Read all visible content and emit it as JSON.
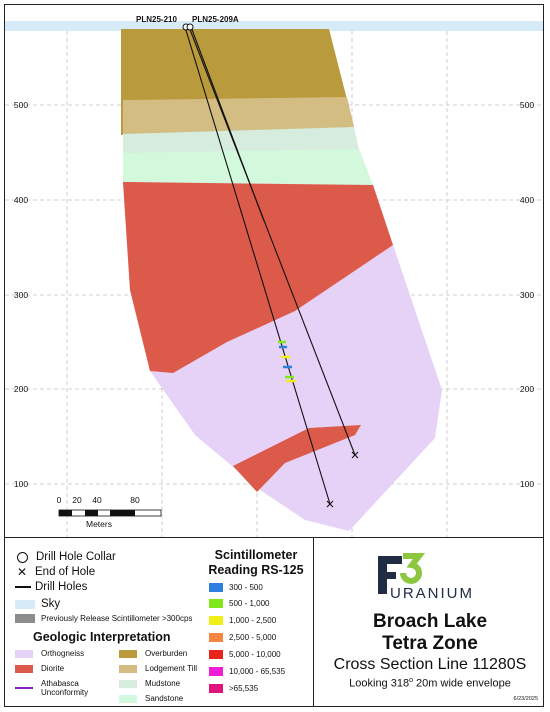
{
  "holes": [
    {
      "name": "PLN25-210"
    },
    {
      "name": "PLN25-209A"
    }
  ],
  "elevation_ticks": [
    "500",
    "400",
    "300",
    "200",
    "100"
  ],
  "scale_bar": {
    "ticks": [
      "0",
      "20",
      "40",
      "80"
    ],
    "unit": "Meters"
  },
  "legend": {
    "symbols": [
      {
        "label": "Drill Hole Collar",
        "icon": "circle-icon"
      },
      {
        "label": "End of Hole",
        "icon": "x-icon"
      },
      {
        "label": "Drill Holes",
        "icon": "line-icon"
      }
    ],
    "sky": {
      "label": "Sky",
      "color": "#d7eaf7"
    },
    "previous_release": {
      "label": "Previously Release Scintillometer >300cps",
      "color": "#8c8c8c"
    },
    "geology_title": "Geologic Interpretation",
    "geology_units": [
      {
        "label": "Orthogneiss",
        "color": "#e6d1f7"
      },
      {
        "label": "Overburden",
        "color": "#b99a3c"
      },
      {
        "label": "Diorite",
        "color": "#dc5a4a"
      },
      {
        "label": "Lodgement Till",
        "color": "#d3bd82"
      },
      {
        "label": "Athabasca Unconformity",
        "color": "#8b1fc0"
      },
      {
        "label": "Mudstone",
        "color": "#d6ecdf"
      },
      {
        "label": "Sandstone",
        "color": "#d2f9dc"
      }
    ]
  },
  "scintillometer": {
    "title_line1": "Scintillometer",
    "title_line2": "Reading RS-125",
    "ranges": [
      {
        "label": "300 - 500",
        "color": "#2f7fe0"
      },
      {
        "label": "500 - 1,000",
        "color": "#7ee81a"
      },
      {
        "label": "1,000 - 2,500",
        "color": "#f2ee18"
      },
      {
        "label": "2,500 - 5,000",
        "color": "#f58642"
      },
      {
        "label": "5,000 - 10,000",
        "color": "#e8251b"
      },
      {
        "label": "10,000 - 65,535",
        "color": "#ee1ed6"
      },
      {
        "label": ">65,535",
        "color": "#e0157c"
      }
    ]
  },
  "logo": {
    "mark": "F3",
    "text": "URANIUM",
    "color": "#222c45",
    "accent": "#8dc63f"
  },
  "title": {
    "line1": "Broach Lake",
    "line2": "Tetra Zone",
    "line3": "Cross Section Line 11280S",
    "line4_a": "Looking 318",
    "line4_deg": "o",
    "line4_b": " 20m wide envelope",
    "date": "6/23/2025"
  }
}
